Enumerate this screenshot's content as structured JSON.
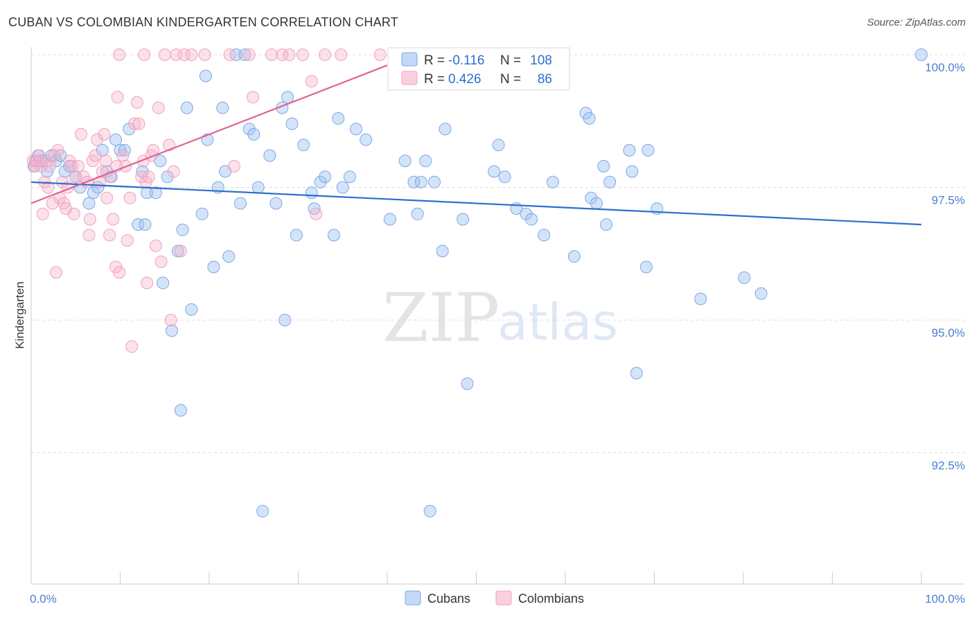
{
  "title": "CUBAN VS COLOMBIAN KINDERGARTEN CORRELATION CHART",
  "source": "Source: ZipAtlas.com",
  "watermark": {
    "part1": "ZIP",
    "part2": "atlas"
  },
  "chart_data": {
    "type": "scatter",
    "xlabel": "",
    "ylabel": "Kindergarten",
    "xlim": [
      0,
      100
    ],
    "ylim": [
      90.3,
      100.3
    ],
    "x_tick_labels": [
      {
        "value": 0,
        "label": "0.0%"
      },
      {
        "value": 100,
        "label": "100.0%"
      }
    ],
    "y_ticks": [
      {
        "value": 100,
        "label": "100.0%"
      },
      {
        "value": 97.5,
        "label": "97.5%"
      },
      {
        "value": 95,
        "label": "95.0%"
      },
      {
        "value": 92.5,
        "label": "92.5%"
      }
    ],
    "grid": "horizontal dashed",
    "legend_position": "top-center",
    "series": [
      {
        "name": "Cubans",
        "color": "#7ba7e8",
        "line_color": "#2b6fcc",
        "r_label": "R =",
        "r_value": "-0.116",
        "n_label": "N =",
        "n_value": "108",
        "trend": {
          "x0": 0,
          "y0": 97.6,
          "x1": 100,
          "y1": 96.8
        },
        "points": [
          [
            0.3,
            97.9
          ],
          [
            0.5,
            98.0
          ],
          [
            0.8,
            98.1
          ],
          [
            1.0,
            98.0
          ],
          [
            1.3,
            98.0
          ],
          [
            1.8,
            97.8
          ],
          [
            2.3,
            98.1
          ],
          [
            2.8,
            98.0
          ],
          [
            3.3,
            98.1
          ],
          [
            3.8,
            97.8
          ],
          [
            4.3,
            97.9
          ],
          [
            5.0,
            97.7
          ],
          [
            5.5,
            97.5
          ],
          [
            6.5,
            97.2
          ],
          [
            7.0,
            97.4
          ],
          [
            7.5,
            97.5
          ],
          [
            8.0,
            98.2
          ],
          [
            8.5,
            97.8
          ],
          [
            9.0,
            97.7
          ],
          [
            9.5,
            98.4
          ],
          [
            10.0,
            98.2
          ],
          [
            10.5,
            98.2
          ],
          [
            11.0,
            98.6
          ],
          [
            12.0,
            96.8
          ],
          [
            12.5,
            97.8
          ],
          [
            12.8,
            96.8
          ],
          [
            13.0,
            97.4
          ],
          [
            14.0,
            97.4
          ],
          [
            14.5,
            98.0
          ],
          [
            14.8,
            95.7
          ],
          [
            15.3,
            97.7
          ],
          [
            15.8,
            94.8
          ],
          [
            16.5,
            96.3
          ],
          [
            16.8,
            93.3
          ],
          [
            17.0,
            96.7
          ],
          [
            17.5,
            99.0
          ],
          [
            18.0,
            95.2
          ],
          [
            19.2,
            97.0
          ],
          [
            19.6,
            99.6
          ],
          [
            19.8,
            98.4
          ],
          [
            20.5,
            96.0
          ],
          [
            21.0,
            97.5
          ],
          [
            21.5,
            99.0
          ],
          [
            21.8,
            97.8
          ],
          [
            22.2,
            96.2
          ],
          [
            23.0,
            100.0
          ],
          [
            23.5,
            97.2
          ],
          [
            24.0,
            100.0
          ],
          [
            24.5,
            98.6
          ],
          [
            25.0,
            98.5
          ],
          [
            25.5,
            97.5
          ],
          [
            26.0,
            91.4
          ],
          [
            26.8,
            98.1
          ],
          [
            27.5,
            97.2
          ],
          [
            28.2,
            99.0
          ],
          [
            28.5,
            95.0
          ],
          [
            28.8,
            99.2
          ],
          [
            29.3,
            98.7
          ],
          [
            29.8,
            96.6
          ],
          [
            30.6,
            98.3
          ],
          [
            31.5,
            97.4
          ],
          [
            31.8,
            97.1
          ],
          [
            32.5,
            97.6
          ],
          [
            33.0,
            97.7
          ],
          [
            34.0,
            96.6
          ],
          [
            34.5,
            98.8
          ],
          [
            35.0,
            97.5
          ],
          [
            35.8,
            97.7
          ],
          [
            36.5,
            98.6
          ],
          [
            37.6,
            98.4
          ],
          [
            40.3,
            96.9
          ],
          [
            42.0,
            98.0
          ],
          [
            43.0,
            97.6
          ],
          [
            43.4,
            97.0
          ],
          [
            43.8,
            97.6
          ],
          [
            44.3,
            98.0
          ],
          [
            44.8,
            91.4
          ],
          [
            45.3,
            97.6
          ],
          [
            46.2,
            96.3
          ],
          [
            46.5,
            98.6
          ],
          [
            48.5,
            96.9
          ],
          [
            49.0,
            93.8
          ],
          [
            50.4,
            100.0
          ],
          [
            52.0,
            97.8
          ],
          [
            52.5,
            98.3
          ],
          [
            53.2,
            97.7
          ],
          [
            54.5,
            97.1
          ],
          [
            55.6,
            97.0
          ],
          [
            56.2,
            96.9
          ],
          [
            57.6,
            96.6
          ],
          [
            58.6,
            97.6
          ],
          [
            61.0,
            96.2
          ],
          [
            62.3,
            98.9
          ],
          [
            62.7,
            98.8
          ],
          [
            62.9,
            97.3
          ],
          [
            63.5,
            97.2
          ],
          [
            64.3,
            97.9
          ],
          [
            64.6,
            96.8
          ],
          [
            65.0,
            97.6
          ],
          [
            67.2,
            98.2
          ],
          [
            67.5,
            97.8
          ],
          [
            68.0,
            94.0
          ],
          [
            69.1,
            96.0
          ],
          [
            69.3,
            98.2
          ],
          [
            70.3,
            97.1
          ],
          [
            75.2,
            95.4
          ],
          [
            80.1,
            95.8
          ],
          [
            82.0,
            95.5
          ],
          [
            100.0,
            100.0
          ]
        ]
      },
      {
        "name": "Colombians",
        "color": "#f2a0bb",
        "line_color": "#e0628f",
        "r_label": "R =",
        "r_value": "0.426",
        "n_label": "N =",
        "n_value": "86",
        "trend": {
          "x0": 0,
          "y0": 97.2,
          "x1": 40,
          "y1": 99.8
        },
        "points": [
          [
            0.2,
            98.0
          ],
          [
            0.4,
            97.9
          ],
          [
            0.6,
            98.0
          ],
          [
            0.9,
            98.1
          ],
          [
            1.1,
            97.9
          ],
          [
            1.3,
            97.0
          ],
          [
            1.5,
            97.6
          ],
          [
            1.7,
            98.0
          ],
          [
            1.9,
            97.5
          ],
          [
            2.1,
            97.9
          ],
          [
            2.4,
            97.2
          ],
          [
            2.8,
            95.9
          ],
          [
            3.0,
            98.2
          ],
          [
            3.2,
            97.3
          ],
          [
            3.5,
            97.6
          ],
          [
            3.7,
            97.2
          ],
          [
            3.9,
            97.1
          ],
          [
            4.1,
            97.5
          ],
          [
            4.3,
            98.0
          ],
          [
            4.6,
            97.9
          ],
          [
            4.8,
            97.0
          ],
          [
            5.0,
            97.7
          ],
          [
            5.3,
            97.9
          ],
          [
            5.6,
            98.5
          ],
          [
            5.9,
            97.7
          ],
          [
            6.3,
            97.6
          ],
          [
            6.5,
            96.6
          ],
          [
            6.6,
            96.9
          ],
          [
            6.9,
            98.0
          ],
          [
            7.2,
            98.1
          ],
          [
            7.4,
            98.4
          ],
          [
            7.7,
            97.6
          ],
          [
            8.0,
            97.8
          ],
          [
            8.2,
            98.5
          ],
          [
            8.4,
            98.0
          ],
          [
            8.5,
            97.3
          ],
          [
            8.8,
            96.6
          ],
          [
            8.9,
            97.7
          ],
          [
            9.2,
            96.9
          ],
          [
            9.5,
            96.0
          ],
          [
            9.7,
            99.2
          ],
          [
            9.9,
            95.9
          ],
          [
            10.3,
            98.1
          ],
          [
            10.6,
            97.9
          ],
          [
            10.8,
            96.5
          ],
          [
            11.1,
            97.3
          ],
          [
            11.3,
            94.5
          ],
          [
            11.6,
            98.7
          ],
          [
            11.9,
            99.1
          ],
          [
            12.1,
            98.7
          ],
          [
            12.4,
            97.7
          ],
          [
            12.6,
            98.0
          ],
          [
            12.9,
            97.6
          ],
          [
            13.0,
            95.7
          ],
          [
            13.2,
            97.7
          ],
          [
            13.5,
            98.1
          ],
          [
            13.7,
            98.2
          ],
          [
            14.0,
            96.4
          ],
          [
            14.3,
            99.0
          ],
          [
            14.6,
            96.1
          ],
          [
            15.0,
            100.0
          ],
          [
            15.5,
            98.3
          ],
          [
            15.7,
            95.0
          ],
          [
            16.0,
            97.8
          ],
          [
            16.3,
            100.0
          ],
          [
            16.8,
            96.3
          ],
          [
            17.2,
            100.0
          ],
          [
            18.0,
            100.0
          ],
          [
            19.5,
            100.0
          ],
          [
            22.3,
            100.0
          ],
          [
            22.8,
            97.9
          ],
          [
            24.5,
            100.0
          ],
          [
            24.9,
            99.2
          ],
          [
            27.0,
            100.0
          ],
          [
            28.2,
            100.0
          ],
          [
            29.0,
            100.0
          ],
          [
            30.5,
            100.0
          ],
          [
            31.5,
            99.5
          ],
          [
            33.0,
            100.0
          ],
          [
            34.8,
            100.0
          ],
          [
            32.0,
            97.0
          ],
          [
            9.9,
            100.0
          ],
          [
            12.7,
            100.0
          ],
          [
            39.2,
            100.0
          ],
          [
            9.6,
            97.9
          ],
          [
            2.6,
            98.1
          ]
        ]
      }
    ]
  }
}
